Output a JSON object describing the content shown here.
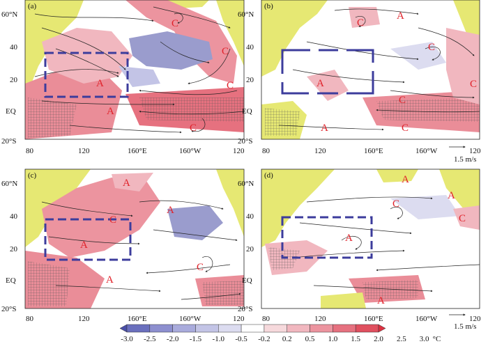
{
  "panels": [
    {
      "label": "(a)",
      "circulation": [
        "C",
        "C",
        "C",
        "A",
        "A",
        "C"
      ]
    },
    {
      "label": "(b)",
      "circulation": [
        "C",
        "A",
        "C",
        "C",
        "A",
        "C",
        "A",
        "C"
      ]
    },
    {
      "label": "(c)",
      "circulation": [
        "A",
        "A",
        "C",
        "A",
        "C",
        "A"
      ]
    },
    {
      "label": "(d)",
      "circulation": [
        "A",
        "C",
        "A",
        "C",
        "A",
        "A"
      ]
    }
  ],
  "lat_ticks": [
    "60°N",
    "40",
    "20",
    "EQ",
    "20°S"
  ],
  "lon_ticks": [
    "80",
    "120",
    "160°E",
    "160°W",
    "120"
  ],
  "reference_vector": "1.5 m/s",
  "colorbar": {
    "ticks": [
      "-3.0",
      "-2.5",
      "-2.0",
      "-1.5",
      "-1.0",
      "-0.5",
      "-0.2",
      "0.2",
      "0.5",
      "1.0",
      "1.5",
      "2.0",
      "2.5",
      "3.0"
    ],
    "unit": "°C",
    "colors": [
      "#4a4fa8",
      "#6a6fbd",
      "#8d8fcf",
      "#a9abdc",
      "#c3c4e6",
      "#dcdcf0",
      "#ffffff",
      "#f6d9dc",
      "#f1b7bf",
      "#ec949f",
      "#e6717f",
      "#e0505f",
      "#dc3040"
    ]
  },
  "colors": {
    "land": "#e6e873",
    "warm": "#ea8d98",
    "cool": "#9a9ccd",
    "box": "#3c3c9c",
    "label": "#e0222a"
  }
}
